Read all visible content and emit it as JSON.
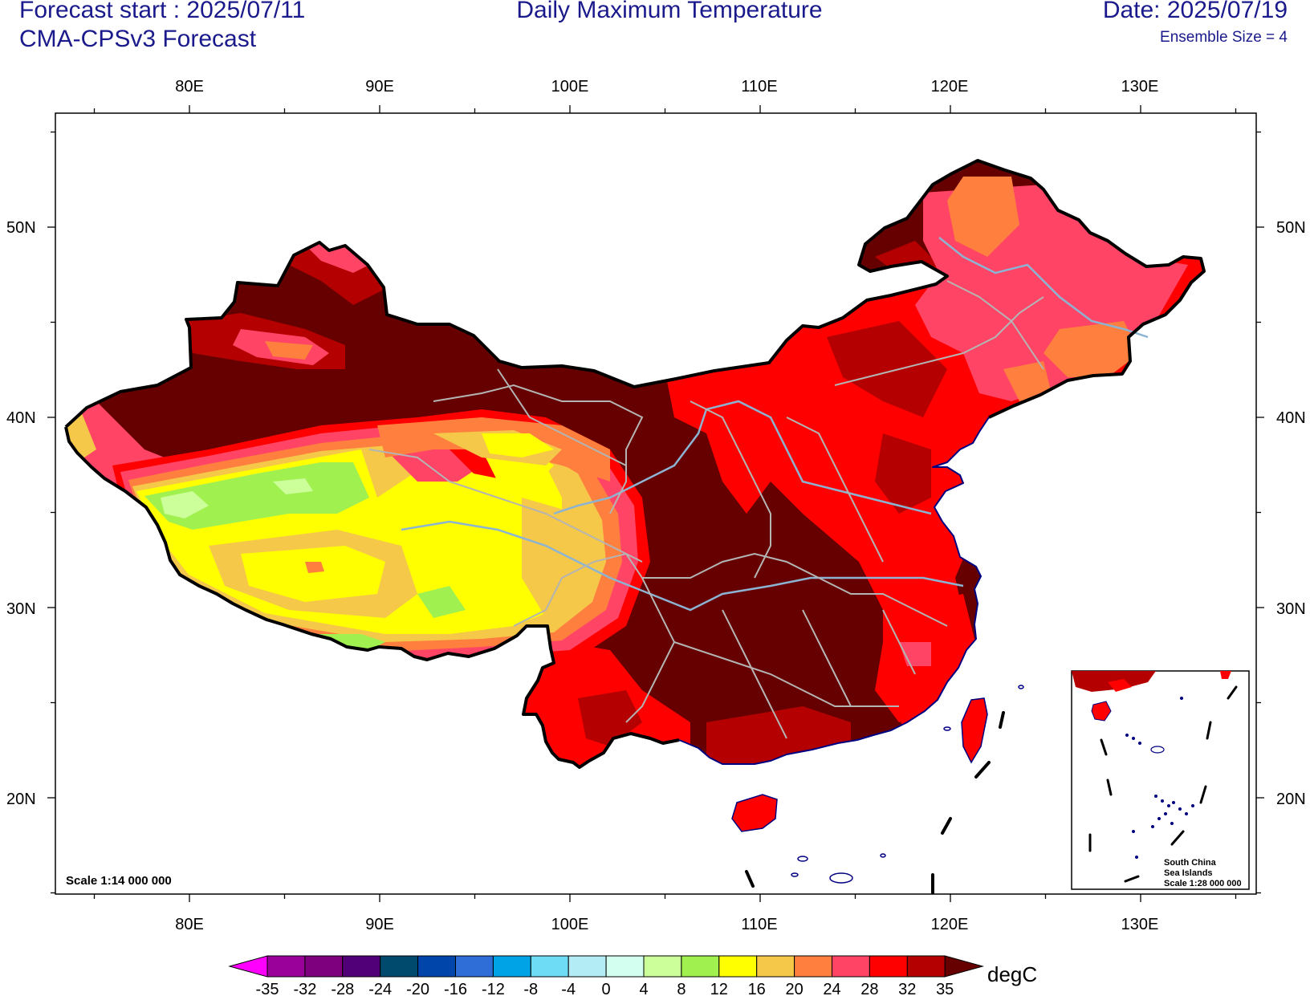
{
  "header": {
    "forecast_start": "Forecast start : 2025/07/11",
    "model": "CMA-CPSv3 Forecast",
    "title": "Daily Maximum Temperature",
    "date": "Date: 2025/07/19",
    "ensemble": "Ensemble Size = 4"
  },
  "map": {
    "lon_labels": [
      "80E",
      "90E",
      "100E",
      "110E",
      "120E",
      "130E"
    ],
    "lat_labels": [
      "50N",
      "40N",
      "30N",
      "20N"
    ],
    "scale": "Scale 1:14 000 000",
    "inset": {
      "line1": "South China",
      "line2": "Sea Islands",
      "scale": "Scale 1:28 000 000"
    }
  },
  "colorbar": {
    "unit": "degC",
    "levels": [
      "-35",
      "-32",
      "-28",
      "-24",
      "-20",
      "-16",
      "-12",
      "-8",
      "-4",
      "0",
      "4",
      "8",
      "12",
      "16",
      "20",
      "24",
      "28",
      "32",
      "35"
    ],
    "colors": [
      "#ff00ff",
      "#9a009a",
      "#7e007e",
      "#520078",
      "#004a6e",
      "#0046aa",
      "#2e6ed6",
      "#00a4e6",
      "#6edcf5",
      "#b4ecf5",
      "#d2fff0",
      "#ccff99",
      "#a0f050",
      "#ffff00",
      "#f5c84a",
      "#ff7f3f",
      "#ff4466",
      "#ff0000",
      "#b40000",
      "#660000"
    ]
  },
  "colors": {
    "title_text": "#1a1a8c",
    "coast": "#000080",
    "river": "#8cb4d2",
    "province_border": "#b4b4b4",
    "national_border": "#000000"
  }
}
